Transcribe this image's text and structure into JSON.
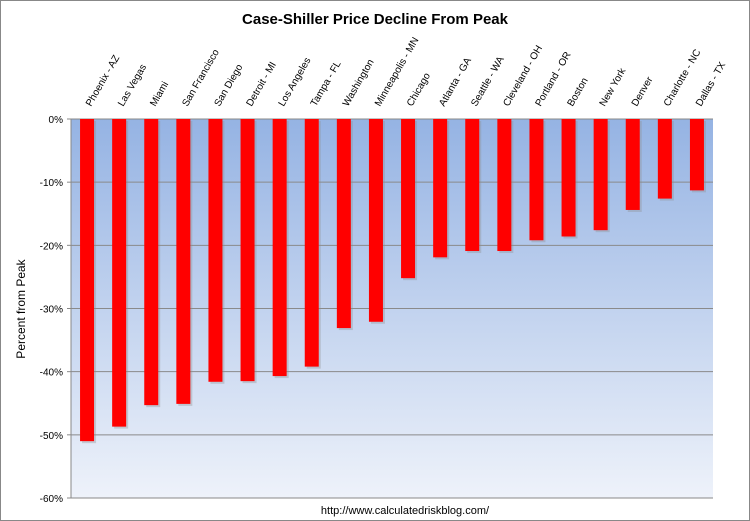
{
  "chart_data": {
    "type": "bar",
    "title": "Case-Shiller Price Decline From Peak",
    "xlabel": "",
    "ylabel": "Percent from Peak",
    "ylim": [
      -60,
      0
    ],
    "yticks": [
      "0%",
      "-10%",
      "-20%",
      "-30%",
      "-40%",
      "-50%",
      "-60%"
    ],
    "grid": true,
    "categories": [
      "Phoenix - AZ",
      "Las Vegas",
      "Miami",
      "San Francisco",
      "San Diego",
      "Detroit - MI",
      "Los Angeles",
      "Tampa - FL",
      "Washington",
      "Minneapolis - MN",
      "Chicago",
      "Atlanta - GA",
      "Seattle - WA",
      "Cleveland - OH",
      "Portland - OR",
      "Boston",
      "New York",
      "Denver",
      "Charlotte - NC",
      "Dallas - TX"
    ],
    "values": [
      -51.0,
      -48.7,
      -45.3,
      -45.1,
      -41.6,
      -41.5,
      -40.7,
      -39.2,
      -33.1,
      -32.1,
      -25.2,
      -21.9,
      -20.9,
      -20.9,
      -19.2,
      -18.6,
      -17.6,
      -14.4,
      -12.6,
      -11.3
    ],
    "bar_color": "#ff0000",
    "footer": "http://www.calculatedriskblog.com/"
  }
}
